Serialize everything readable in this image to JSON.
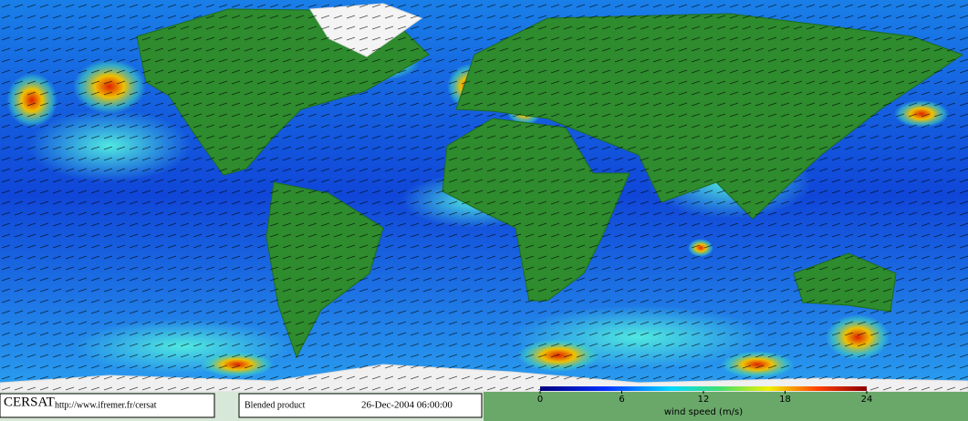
{
  "header": {
    "logo": "CERSAT",
    "url": "http://www.ifremer.fr/cersat"
  },
  "product": {
    "name": "Blended product",
    "date": "26-Dec-2004 06:00:00"
  },
  "colorbar": {
    "label": "wind speed (m/s)",
    "lim": [
      0,
      24
    ],
    "ticks": [
      0,
      6,
      12,
      18,
      24
    ]
  }
}
